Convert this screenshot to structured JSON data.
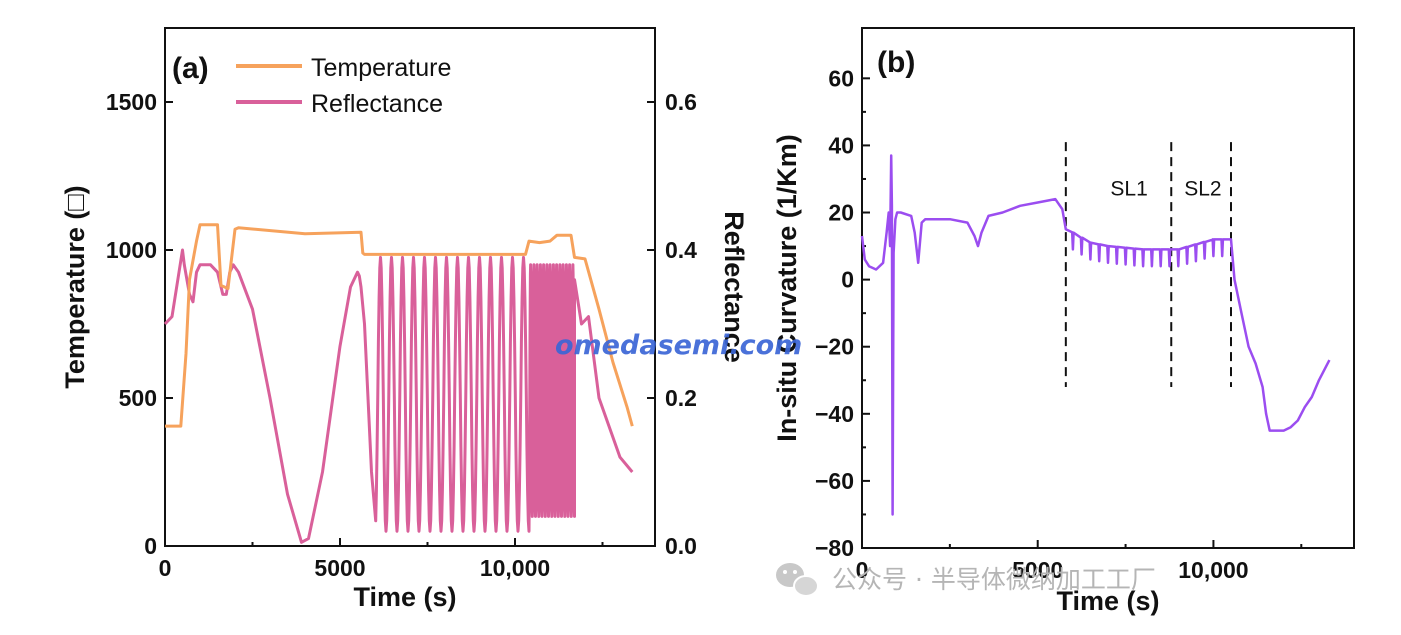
{
  "watermark": "omedasemi.com",
  "wechat_label": "公众号 · 半导体微纳加工工厂",
  "chart_data": [
    {
      "type": "line",
      "panel": "(a)",
      "xlabel": "Time (s)",
      "ylabel": "Temperature (□)",
      "y2label": "Reflectance",
      "xlim": [
        0,
        14000
      ],
      "ylim": [
        0,
        1750
      ],
      "y2lim": [
        0,
        0.7
      ],
      "xticks": [
        0,
        5000,
        10000
      ],
      "xtick_labels": [
        "0",
        "5000",
        "10,000"
      ],
      "yticks": [
        0,
        500,
        1000,
        1500
      ],
      "ytick_labels": [
        "0",
        "500",
        "1000",
        "1500"
      ],
      "y2ticks": [
        0,
        0.2,
        0.4,
        0.6
      ],
      "y2tick_labels": [
        "0.0",
        "0.2",
        "0.4",
        "0.6"
      ],
      "legend": [
        "Temperature",
        "Reflectance"
      ],
      "legend_position": "top-left",
      "series": [
        {
          "name": "Temperature",
          "axis": "left",
          "color": "#f6a25c",
          "x": [
            0,
            450,
            600,
            700,
            900,
            1000,
            1500,
            1600,
            1800,
            2000,
            2100,
            4000,
            5600,
            5650,
            5700,
            7000,
            9000,
            10300,
            10400,
            10700,
            11000,
            11200,
            11600,
            11700,
            12000,
            12400,
            12800,
            13200,
            13350
          ],
          "y": [
            405,
            405,
            650,
            900,
            1030,
            1085,
            1085,
            880,
            870,
            1070,
            1075,
            1055,
            1060,
            990,
            985,
            985,
            985,
            985,
            1030,
            1025,
            1030,
            1050,
            1050,
            975,
            970,
            800,
            620,
            470,
            405
          ]
        },
        {
          "name": "Reflectance",
          "axis": "right",
          "color": "#d9609a",
          "x": [
            0,
            200,
            400,
            500,
            550,
            700,
            800,
            900,
            1000,
            1100,
            1300,
            1500,
            1650,
            1750,
            1850,
            1950,
            2100,
            2500,
            3000,
            3500,
            3900,
            4100,
            4500,
            5000,
            5300,
            5500,
            5550,
            5600,
            5700,
            5900
          ],
          "y": [
            0.3,
            0.31,
            0.37,
            0.4,
            0.38,
            0.34,
            0.33,
            0.37,
            0.38,
            0.38,
            0.38,
            0.37,
            0.34,
            0.34,
            0.37,
            0.38,
            0.37,
            0.32,
            0.2,
            0.07,
            0.005,
            0.01,
            0.1,
            0.27,
            0.35,
            0.37,
            0.365,
            0.35,
            0.3,
            0.1
          ],
          "oscillation_low": {
            "x_start": 6000,
            "x_end": 10400,
            "cycles": 14,
            "min": 0.02,
            "max": 0.39
          },
          "oscillation_high": {
            "x_start": 10400,
            "x_end": 11700,
            "cycles": 14,
            "min": 0.04,
            "max": 0.38
          },
          "tail": {
            "x": [
              11700,
              11900,
              12100,
              12400,
              12700,
              13000,
              13350
            ],
            "y": [
              0.36,
              0.3,
              0.31,
              0.2,
              0.16,
              0.12,
              0.1
            ]
          }
        }
      ]
    },
    {
      "type": "line",
      "panel": "(b)",
      "xlabel": "Time (s)",
      "ylabel": "In-situ Curvature (1/Km)",
      "xlim": [
        0,
        14000
      ],
      "ylim": [
        -80,
        75
      ],
      "xticks": [
        0,
        5000,
        10000
      ],
      "xtick_labels": [
        "0",
        "5000",
        "10,000"
      ],
      "yticks": [
        -80,
        -60,
        -40,
        -20,
        0,
        20,
        40,
        60
      ],
      "ytick_labels": [
        "−80",
        "−60",
        "−40",
        "−20",
        "0",
        "20",
        "40",
        "60"
      ],
      "vlines": [
        5800,
        8800,
        10500
      ],
      "region_labels": [
        {
          "text": "SL1",
          "x": 7600,
          "y": 25
        },
        {
          "text": "SL2",
          "x": 9700,
          "y": 25
        }
      ],
      "series": [
        {
          "name": "In-situ Curvature",
          "color": "#9b4df0",
          "x": [
            0,
            80,
            200,
            400,
            600,
            700,
            760,
            800,
            830,
            850,
            870,
            900,
            950,
            1000,
            1100,
            1400,
            1500,
            1600,
            1700,
            1800,
            2000,
            2500,
            3000,
            3200,
            3300,
            3400,
            3600,
            4000,
            4500,
            5000,
            5500,
            5700,
            5800,
            6000,
            6500,
            7000,
            8000,
            9000,
            10000,
            10500,
            10600,
            10800,
            11000,
            11200,
            11400,
            11500,
            11600,
            11800,
            12000,
            12200,
            12400,
            12600,
            12800,
            13000,
            13300
          ],
          "y": [
            13,
            6,
            4,
            3,
            5,
            14,
            20,
            10,
            37,
            22,
            -70,
            8,
            18,
            20,
            20,
            19,
            14,
            5,
            17,
            18,
            18,
            18,
            17,
            13,
            10,
            14,
            19,
            20,
            22,
            23,
            24,
            21,
            15,
            14,
            11,
            10,
            9,
            9,
            12,
            12,
            0,
            -10,
            -20,
            -25,
            -32,
            -40,
            -45,
            -45,
            -45,
            -44,
            -42,
            -38,
            -35,
            -30,
            -24
          ],
          "noise_region": {
            "x_start": 5900,
            "x_end": 10450,
            "spike_spacing": 250,
            "spike_depth": 5
          }
        }
      ]
    }
  ]
}
